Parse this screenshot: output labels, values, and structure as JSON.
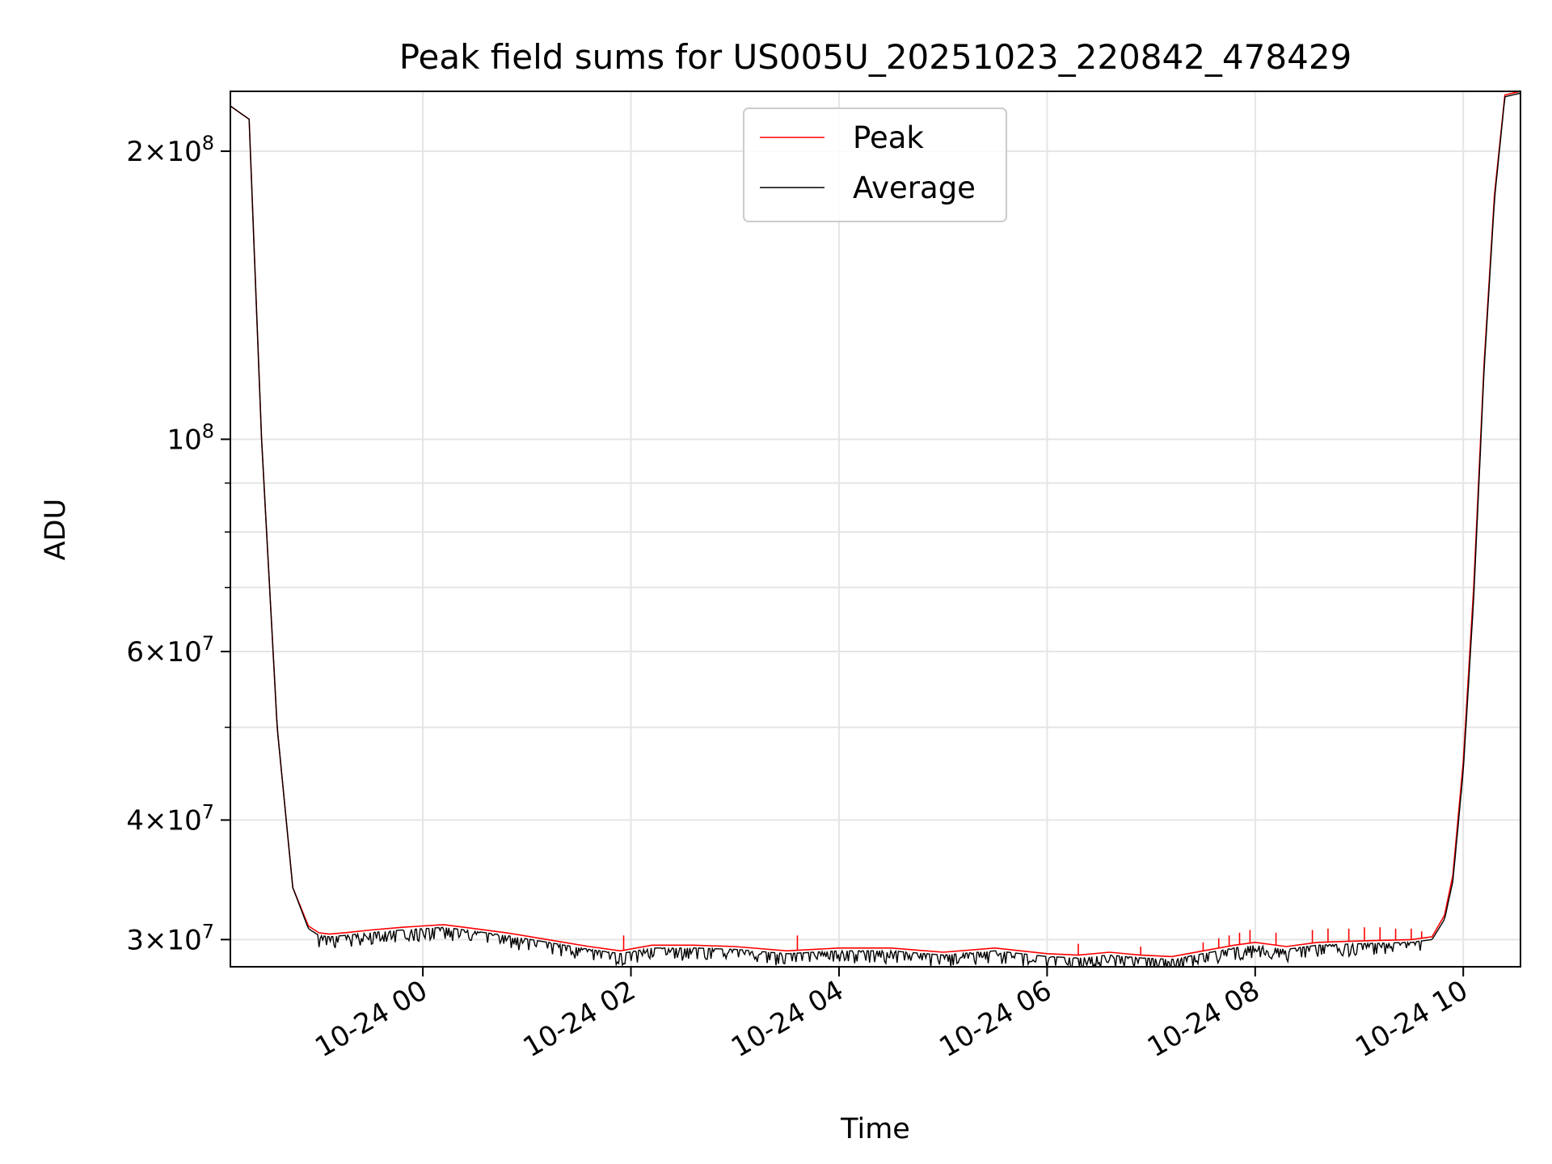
{
  "chart_data": {
    "type": "line",
    "title": "Peak field sums for US005U_20251023_220842_478429",
    "xlabel": "Time",
    "ylabel": "ADU",
    "yscale": "log",
    "grid": true,
    "legend_position": "upper-center",
    "xlim_hours_from_2025_10_23_22_00": [
      0.15,
      12.55
    ],
    "ylim": [
      28100000,
      231000000
    ],
    "x_ticks": [
      {
        "hours": 2,
        "label": "10-24 00"
      },
      {
        "hours": 4,
        "label": "10-24 02"
      },
      {
        "hours": 6,
        "label": "10-24 04"
      },
      {
        "hours": 8,
        "label": "10-24 06"
      },
      {
        "hours": 10,
        "label": "10-24 08"
      },
      {
        "hours": 12,
        "label": "10-24 10"
      }
    ],
    "y_ticks": [
      {
        "value": 30000000,
        "base": "3",
        "exp": "7"
      },
      {
        "value": 40000000,
        "base": "4",
        "exp": "7"
      },
      {
        "value": 60000000,
        "base": "6",
        "exp": "7"
      },
      {
        "value": 100000000,
        "base": "",
        "exp": "8"
      },
      {
        "value": 200000000,
        "base": "2",
        "exp": "8"
      }
    ],
    "y_minor_ticks": [
      50000000,
      70000000,
      80000000,
      90000000
    ],
    "series": [
      {
        "name": "Peak",
        "color": "#ff0000",
        "x_hours": [
          0.15,
          0.33,
          0.45,
          0.6,
          0.75,
          0.9,
          1.0,
          1.1,
          1.25,
          1.5,
          1.8,
          2.0,
          2.2,
          2.4,
          2.8,
          3.2,
          3.6,
          3.9,
          4.2,
          4.6,
          5.0,
          5.5,
          6.0,
          6.5,
          7.0,
          7.5,
          8.0,
          8.3,
          8.6,
          8.9,
          9.2,
          9.5,
          9.8,
          10.0,
          10.3,
          10.6,
          11.0,
          11.5,
          11.7,
          11.82,
          11.9,
          12.0,
          12.1,
          12.2,
          12.3,
          12.4,
          12.55
        ],
        "y": [
          223000000,
          216000000,
          100000000,
          50000000,
          34000000,
          31000000,
          30500000,
          30400000,
          30500000,
          30700000,
          30900000,
          31000000,
          31100000,
          30900000,
          30500000,
          30000000,
          29500000,
          29200000,
          29600000,
          29600000,
          29500000,
          29200000,
          29400000,
          29400000,
          29100000,
          29400000,
          29000000,
          28900000,
          29100000,
          28900000,
          28800000,
          29200000,
          29600000,
          29800000,
          29500000,
          29800000,
          29900000,
          30000000,
          30200000,
          31800000,
          35000000,
          46000000,
          70000000,
          120000000,
          180000000,
          229000000,
          231000000
        ],
        "spikes": [
          [
            3.93,
            30300000
          ],
          [
            5.6,
            30300000
          ],
          [
            8.3,
            29700000
          ],
          [
            8.9,
            29500000
          ],
          [
            9.5,
            29800000
          ],
          [
            9.65,
            30100000
          ],
          [
            9.75,
            30300000
          ],
          [
            9.85,
            30500000
          ],
          [
            9.95,
            30700000
          ],
          [
            10.2,
            30500000
          ],
          [
            10.55,
            30700000
          ],
          [
            10.7,
            30800000
          ],
          [
            10.9,
            30800000
          ],
          [
            11.05,
            30900000
          ],
          [
            11.2,
            30900000
          ],
          [
            11.35,
            30800000
          ],
          [
            11.5,
            30800000
          ],
          [
            11.6,
            30600000
          ]
        ]
      },
      {
        "name": "Average",
        "color": "#000000",
        "x_hours": [
          0.15,
          0.33,
          0.45,
          0.6,
          0.75,
          0.9,
          1.0,
          1.1,
          1.25,
          1.5,
          1.8,
          2.0,
          2.2,
          2.4,
          2.8,
          3.2,
          3.6,
          3.9,
          4.2,
          4.6,
          5.0,
          5.5,
          6.0,
          6.5,
          7.0,
          7.5,
          8.0,
          8.3,
          8.6,
          8.9,
          9.2,
          9.5,
          9.8,
          10.0,
          10.3,
          10.6,
          11.0,
          11.5,
          11.7,
          11.82,
          11.9,
          12.0,
          12.1,
          12.2,
          12.3,
          12.4,
          12.55
        ],
        "y": [
          223000000,
          216000000,
          100000000,
          50000000,
          34000000,
          30800000,
          30300000,
          30200000,
          30300000,
          30500000,
          30700000,
          30800000,
          30900000,
          30700000,
          30300000,
          29800000,
          29300000,
          29000000,
          29400000,
          29400000,
          29300000,
          29000000,
          29200000,
          29200000,
          28900000,
          29200000,
          28800000,
          28700000,
          28900000,
          28700000,
          28600000,
          29000000,
          29400000,
          29600000,
          29300000,
          29600000,
          29700000,
          29800000,
          30000000,
          31500000,
          34500000,
          45000000,
          68000000,
          118000000,
          178000000,
          228000000,
          230000000
        ],
        "noise_depth_ratio": 0.97
      }
    ]
  }
}
